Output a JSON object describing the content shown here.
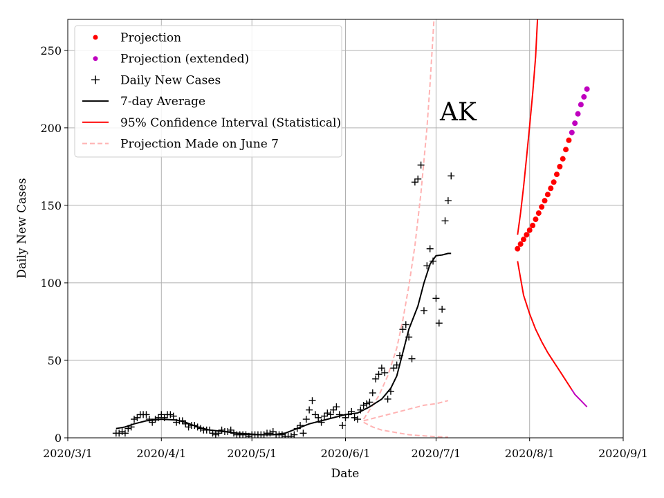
{
  "chart_data": {
    "type": "scatter",
    "title": "",
    "annotation": "AK",
    "xlabel": "Date",
    "ylabel": "Daily New Cases",
    "xlim_days": [
      0,
      184
    ],
    "ylim": [
      0,
      270
    ],
    "x_ticks": [
      {
        "day": 0,
        "label": "2020/3/1"
      },
      {
        "day": 31,
        "label": "2020/4/1"
      },
      {
        "day": 61,
        "label": "2020/5/1"
      },
      {
        "day": 92,
        "label": "2020/6/1"
      },
      {
        "day": 122,
        "label": "2020/7/1"
      },
      {
        "day": 153,
        "label": "2020/8/1"
      },
      {
        "day": 184,
        "label": "2020/9/1"
      }
    ],
    "y_ticks": [
      0,
      50,
      100,
      150,
      200,
      250
    ],
    "grid": true,
    "legend": {
      "placement": "top-left",
      "entries": [
        {
          "label": "Projection",
          "marker": "dot",
          "color": "#ff0000"
        },
        {
          "label": "Projection (extended)",
          "marker": "dot",
          "color": "#bf00bf"
        },
        {
          "label": "Daily New Cases",
          "marker": "plus",
          "color": "#000000"
        },
        {
          "label": "7-day Average",
          "marker": "line",
          "color": "#000000"
        },
        {
          "label": "95% Confidence Interval (Statistical)",
          "marker": "line",
          "color": "#ff0000"
        },
        {
          "label": "Projection Made on June 7",
          "marker": "dashed",
          "color": "#ffb3b3"
        }
      ]
    },
    "series": [
      {
        "name": "Daily New Cases",
        "marker": "plus",
        "color": "#000000",
        "points": [
          [
            16,
            3
          ],
          [
            17,
            3
          ],
          [
            18,
            4
          ],
          [
            19,
            3
          ],
          [
            20,
            6
          ],
          [
            21,
            7
          ],
          [
            22,
            12
          ],
          [
            23,
            13
          ],
          [
            24,
            15
          ],
          [
            25,
            15
          ],
          [
            26,
            15
          ],
          [
            27,
            12
          ],
          [
            28,
            10
          ],
          [
            29,
            12
          ],
          [
            30,
            13
          ],
          [
            31,
            15
          ],
          [
            32,
            13
          ],
          [
            33,
            15
          ],
          [
            34,
            15
          ],
          [
            35,
            14
          ],
          [
            36,
            10
          ],
          [
            37,
            11
          ],
          [
            38,
            11
          ],
          [
            39,
            9
          ],
          [
            40,
            7
          ],
          [
            41,
            8
          ],
          [
            42,
            8
          ],
          [
            43,
            7
          ],
          [
            44,
            6
          ],
          [
            45,
            5
          ],
          [
            46,
            5
          ],
          [
            47,
            5
          ],
          [
            48,
            3
          ],
          [
            49,
            2
          ],
          [
            50,
            3
          ],
          [
            51,
            5
          ],
          [
            52,
            4
          ],
          [
            53,
            4
          ],
          [
            54,
            5
          ],
          [
            55,
            3
          ],
          [
            56,
            2
          ],
          [
            57,
            2
          ],
          [
            58,
            2
          ],
          [
            59,
            2
          ],
          [
            60,
            1
          ],
          [
            61,
            2
          ],
          [
            62,
            2
          ],
          [
            63,
            2
          ],
          [
            64,
            2
          ],
          [
            65,
            2
          ],
          [
            66,
            3
          ],
          [
            67,
            3
          ],
          [
            68,
            4
          ],
          [
            69,
            2
          ],
          [
            70,
            2
          ],
          [
            71,
            2
          ],
          [
            72,
            1
          ],
          [
            73,
            1
          ],
          [
            74,
            1
          ],
          [
            75,
            2
          ],
          [
            76,
            6
          ],
          [
            77,
            8
          ],
          [
            78,
            3
          ],
          [
            79,
            12
          ],
          [
            80,
            18
          ],
          [
            81,
            24
          ],
          [
            82,
            15
          ],
          [
            83,
            13
          ],
          [
            84,
            10
          ],
          [
            85,
            14
          ],
          [
            86,
            16
          ],
          [
            87,
            15
          ],
          [
            88,
            18
          ],
          [
            89,
            20
          ],
          [
            90,
            15
          ],
          [
            91,
            8
          ],
          [
            92,
            13
          ],
          [
            93,
            15
          ],
          [
            94,
            17
          ],
          [
            95,
            13
          ],
          [
            96,
            12
          ],
          [
            97,
            18
          ],
          [
            98,
            21
          ],
          [
            99,
            22
          ],
          [
            100,
            23
          ],
          [
            101,
            29
          ],
          [
            102,
            38
          ],
          [
            103,
            41
          ],
          [
            104,
            45
          ],
          [
            105,
            42
          ],
          [
            106,
            25
          ],
          [
            107,
            30
          ],
          [
            108,
            45
          ],
          [
            109,
            47
          ],
          [
            110,
            53
          ],
          [
            111,
            70
          ],
          [
            112,
            73
          ],
          [
            113,
            65
          ],
          [
            114,
            51
          ],
          [
            115,
            165
          ],
          [
            116,
            167
          ],
          [
            117,
            176
          ],
          [
            118,
            82
          ],
          [
            119,
            111
          ],
          [
            120,
            122
          ],
          [
            121,
            114
          ],
          [
            122,
            90
          ],
          [
            123,
            74
          ],
          [
            124,
            83
          ],
          [
            125,
            140
          ],
          [
            126,
            153
          ],
          [
            127,
            169
          ]
        ]
      },
      {
        "name": "7-day Average",
        "type": "line",
        "color": "#000000",
        "points": [
          [
            16,
            6
          ],
          [
            19,
            7
          ],
          [
            22,
            9
          ],
          [
            26,
            11
          ],
          [
            31,
            12
          ],
          [
            36,
            11.5
          ],
          [
            39,
            10
          ],
          [
            43,
            7
          ],
          [
            47,
            5
          ],
          [
            52,
            4
          ],
          [
            56,
            3
          ],
          [
            60,
            2.5
          ],
          [
            64,
            2
          ],
          [
            68,
            2
          ],
          [
            72,
            3
          ],
          [
            76,
            6
          ],
          [
            80,
            9
          ],
          [
            84,
            11
          ],
          [
            88,
            13
          ],
          [
            92,
            15
          ],
          [
            96,
            16
          ],
          [
            100,
            20
          ],
          [
            104,
            25
          ],
          [
            107,
            32
          ],
          [
            109,
            40
          ],
          [
            111,
            55
          ],
          [
            113,
            70
          ],
          [
            114,
            75
          ],
          [
            116,
            85
          ],
          [
            118,
            100
          ],
          [
            120,
            112
          ],
          [
            122,
            117.5
          ],
          [
            124,
            118
          ],
          [
            126,
            119
          ],
          [
            127,
            119
          ]
        ]
      },
      {
        "name": "Projection",
        "marker": "dot",
        "color": "#ff0000",
        "points": [
          [
            149,
            122
          ],
          [
            150,
            125
          ],
          [
            151,
            128
          ],
          [
            152,
            131
          ],
          [
            153,
            134
          ],
          [
            154,
            137
          ],
          [
            155,
            141
          ],
          [
            156,
            145
          ],
          [
            157,
            149
          ],
          [
            158,
            153
          ],
          [
            159,
            157
          ],
          [
            160,
            161
          ],
          [
            161,
            165
          ],
          [
            162,
            170
          ],
          [
            163,
            175
          ],
          [
            164,
            180
          ],
          [
            165,
            186
          ],
          [
            166,
            192
          ]
        ]
      },
      {
        "name": "Projection (extended)",
        "marker": "dot",
        "color": "#bf00bf",
        "points": [
          [
            167,
            197
          ],
          [
            168,
            203
          ],
          [
            169,
            209
          ],
          [
            170,
            215
          ],
          [
            171,
            220
          ],
          [
            172,
            225
          ]
        ]
      },
      {
        "name": "95% CI upper",
        "type": "line",
        "color": "#ff0000",
        "points": [
          [
            149,
            131
          ],
          [
            150,
            145
          ],
          [
            151,
            162
          ],
          [
            152,
            181
          ],
          [
            153,
            201
          ],
          [
            154,
            222
          ],
          [
            155,
            246
          ],
          [
            155.6,
            270
          ]
        ]
      },
      {
        "name": "95% CI lower",
        "type": "line",
        "color": "#ff0000",
        "points": [
          [
            149,
            114
          ],
          [
            150,
            103
          ],
          [
            151,
            92
          ],
          [
            153,
            80
          ],
          [
            155,
            70
          ],
          [
            157,
            62
          ],
          [
            159,
            55
          ],
          [
            161,
            49
          ],
          [
            163,
            43
          ],
          [
            165,
            37
          ],
          [
            167,
            31
          ]
        ]
      },
      {
        "name": "95% CI lower (extended)",
        "type": "line",
        "color": "#bf00bf",
        "points": [
          [
            167,
            31
          ],
          [
            168,
            28
          ],
          [
            170,
            24
          ],
          [
            172,
            20
          ]
        ]
      },
      {
        "name": "June 7 upper",
        "type": "dashed",
        "color": "#ffb3b3",
        "points": [
          [
            98,
            12
          ],
          [
            100,
            18
          ],
          [
            103,
            27
          ],
          [
            106,
            40
          ],
          [
            109,
            58
          ],
          [
            111,
            76
          ],
          [
            113,
            98
          ],
          [
            115,
            124
          ],
          [
            117,
            158
          ],
          [
            119,
            200
          ],
          [
            120,
            228
          ],
          [
            121,
            260
          ],
          [
            121.3,
            270
          ]
        ]
      },
      {
        "name": "June 7 middle",
        "type": "dashed",
        "color": "#ffb3b3",
        "points": [
          [
            98,
            11
          ],
          [
            102,
            13
          ],
          [
            106,
            15
          ],
          [
            110,
            17
          ],
          [
            114,
            19
          ],
          [
            118,
            21
          ],
          [
            122,
            22
          ],
          [
            126,
            24
          ]
        ]
      },
      {
        "name": "June 7 lower",
        "type": "dashed",
        "color": "#ffb3b3",
        "points": [
          [
            98,
            10
          ],
          [
            101,
            7
          ],
          [
            104,
            5
          ],
          [
            107,
            4
          ],
          [
            110,
            3
          ],
          [
            113,
            2
          ],
          [
            116,
            1.5
          ],
          [
            120,
            1
          ],
          [
            126,
            0.5
          ]
        ]
      }
    ]
  }
}
